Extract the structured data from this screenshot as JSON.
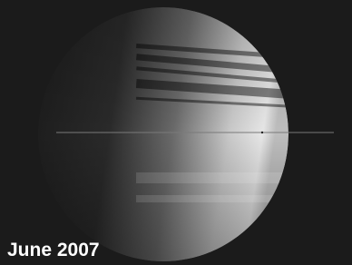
{
  "caption": "June 2007"
}
